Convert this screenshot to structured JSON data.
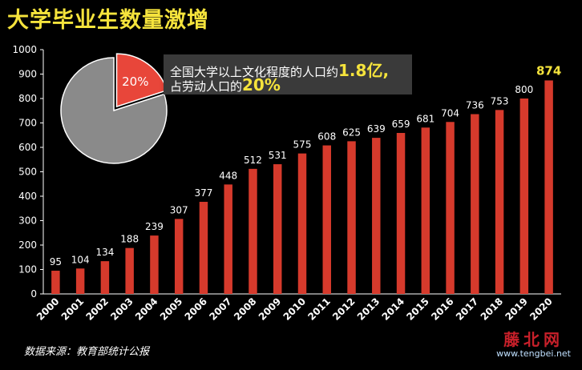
{
  "title": "大学毕业生数量激增",
  "source": "数据来源：教育部统计公报",
  "callout": {
    "line1_text": "全国大学以上文化程度的人口约",
    "line1_highlight": "1.8亿,",
    "line2_text": "占劳动人口的",
    "line2_highlight": "20%"
  },
  "watermark": {
    "logo": "藤北网",
    "url": "www.tengbei.net"
  },
  "colors": {
    "bar": "#d63a2c",
    "highlight": "#f5e33c",
    "pie_gray": "#8a8a8a",
    "pie_slice": "#e8463a",
    "axis_text": "#ffffff"
  },
  "chart_data": [
    {
      "type": "bar",
      "categories": [
        "2000",
        "2001",
        "2002",
        "2003",
        "2004",
        "2005",
        "2006",
        "2007",
        "2008",
        "2009",
        "2010",
        "2011",
        "2012",
        "2013",
        "2014",
        "2015",
        "2016",
        "2017",
        "2018",
        "2019",
        "2020"
      ],
      "values": [
        95,
        104,
        134,
        188,
        239,
        307,
        377,
        448,
        512,
        531,
        575,
        608,
        625,
        639,
        659,
        681,
        704,
        736,
        753,
        800,
        874
      ],
      "ylim": [
        0,
        1000
      ],
      "yticks": [
        0,
        100,
        200,
        300,
        400,
        500,
        600,
        700,
        800,
        900,
        1000
      ],
      "highlight_last": true
    },
    {
      "type": "pie",
      "slices": [
        {
          "label": "20%",
          "value": 20
        },
        {
          "label": "",
          "value": 80
        }
      ]
    }
  ]
}
